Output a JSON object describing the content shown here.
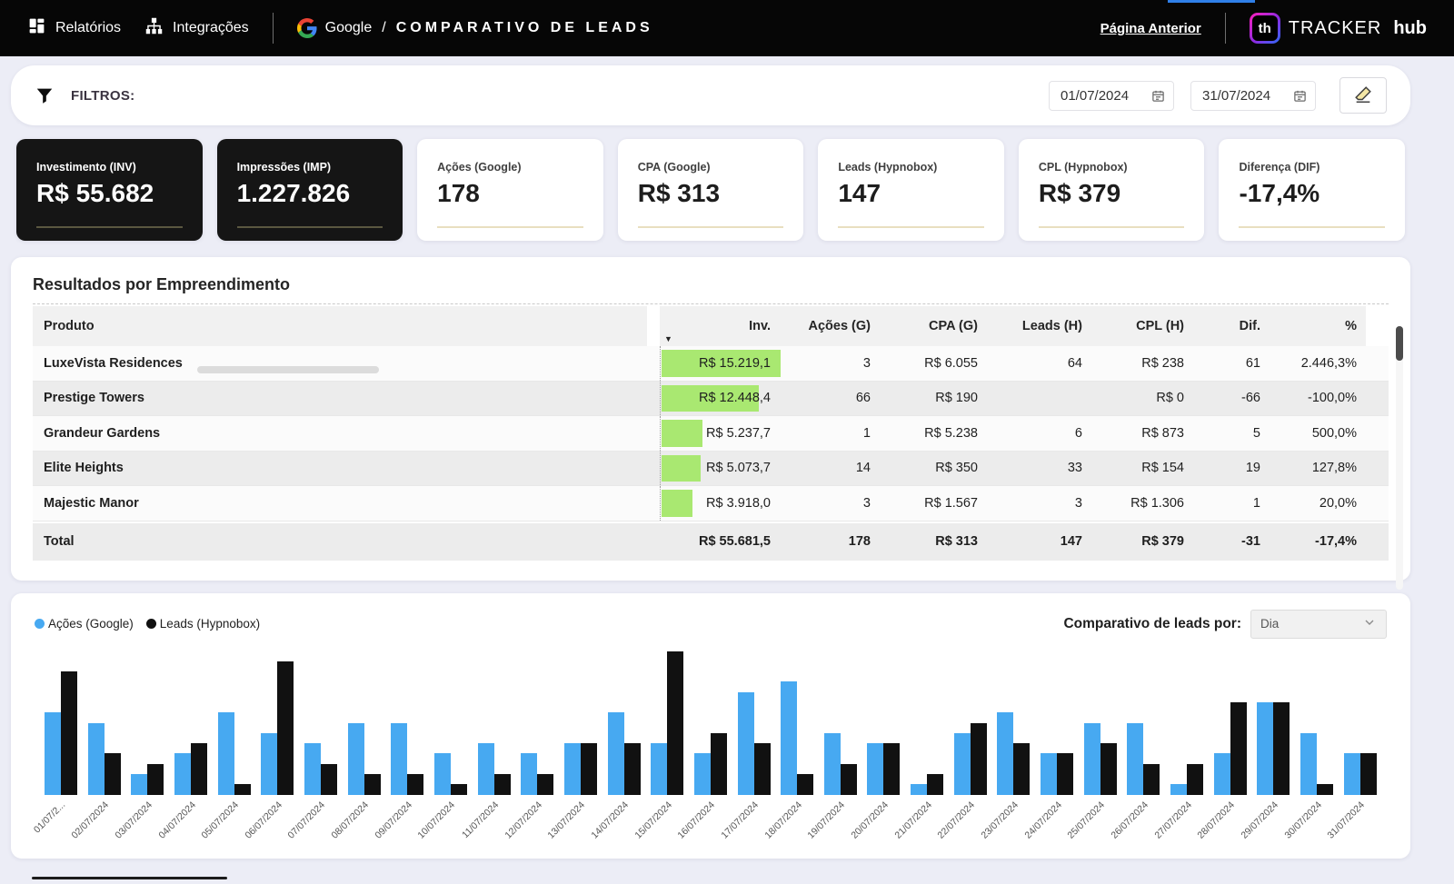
{
  "topbar": {
    "nav": [
      {
        "label": "Relatórios"
      },
      {
        "label": "Integrações"
      }
    ],
    "breadcrumb": {
      "source": "Google",
      "separator": "/",
      "title": "COMPARATIVO DE LEADS"
    },
    "back_link": "Página Anterior",
    "brand": {
      "logo": "th",
      "name": "TRACKER",
      "suffix": "hub"
    }
  },
  "filters": {
    "label": "FILTROS:",
    "date_start": "01/07/2024",
    "date_end": "31/07/2024",
    "icons": {
      "filter": "funnel-icon",
      "calendar": "calendar-icon",
      "clear": "eraser-icon"
    }
  },
  "kpi": {
    "cards": [
      {
        "label": "Investimento (INV)",
        "value": "R$ 55.682",
        "theme": "dark"
      },
      {
        "label": "Impressões (IMP)",
        "value": "1.227.826",
        "theme": "dark"
      },
      {
        "label": "Ações (Google)",
        "value": "178",
        "theme": "light"
      },
      {
        "label": "CPA (Google)",
        "value": "R$ 313",
        "theme": "light"
      },
      {
        "label": "Leads (Hypnobox)",
        "value": "147",
        "theme": "light"
      },
      {
        "label": "CPL (Hypnobox)",
        "value": "R$ 379",
        "theme": "light"
      },
      {
        "label": "Diferença (DIF)",
        "value": "-17,4%",
        "theme": "light"
      }
    ]
  },
  "table": {
    "title": "Resultados por Empreendimento",
    "columns": [
      "Produto",
      "Inv.",
      "Ações (G)",
      "CPA (G)",
      "Leads (H)",
      "CPL (H)",
      "Dif.",
      "%"
    ],
    "databar_color": "#a9e871",
    "rows": [
      {
        "produto": "LuxeVista Residences",
        "inv": "R$ 15.219,1",
        "bar_pct": 100,
        "acoes": "3",
        "cpa": "R$ 6.055",
        "leads": "64",
        "cpl": "R$ 238",
        "dif": "61",
        "pct": "2.446,3%"
      },
      {
        "produto": "Prestige Towers",
        "inv": "R$ 12.448,4",
        "bar_pct": 82,
        "acoes": "66",
        "cpa": "R$ 190",
        "leads": "",
        "cpl": "R$ 0",
        "dif": "-66",
        "pct": "-100,0%"
      },
      {
        "produto": "Grandeur Gardens",
        "inv": "R$ 5.237,7",
        "bar_pct": 34,
        "acoes": "1",
        "cpa": "R$ 5.238",
        "leads": "6",
        "cpl": "R$ 873",
        "dif": "5",
        "pct": "500,0%"
      },
      {
        "produto": "Elite Heights",
        "inv": "R$ 5.073,7",
        "bar_pct": 33,
        "acoes": "14",
        "cpa": "R$ 350",
        "leads": "33",
        "cpl": "R$ 154",
        "dif": "19",
        "pct": "127,8%"
      },
      {
        "produto": "Majestic Manor",
        "inv": "R$ 3.918,0",
        "bar_pct": 26,
        "acoes": "3",
        "cpa": "R$ 1.567",
        "leads": "3",
        "cpl": "R$ 1.306",
        "dif": "1",
        "pct": "20,0%"
      }
    ],
    "total": {
      "produto": "Total",
      "inv": "R$ 55.681,5",
      "acoes": "178",
      "cpa": "R$ 313",
      "leads": "147",
      "cpl": "R$ 379",
      "dif": "-31",
      "pct": "-17,4%"
    }
  },
  "chart": {
    "legend": [
      {
        "label": "Ações (Google)",
        "color": "#47a9f1"
      },
      {
        "label": "Leads (Hypnobox)",
        "color": "#111111"
      }
    ],
    "selector_label": "Comparativo de leads por:",
    "selector_value": "Dia"
  },
  "chart_data": {
    "type": "bar",
    "title": "Comparativo de leads por dia",
    "categories": [
      "01/07/2024",
      "02/07/2024",
      "03/07/2024",
      "04/07/2024",
      "05/07/2024",
      "06/07/2024",
      "07/07/2024",
      "08/07/2024",
      "09/07/2024",
      "10/07/2024",
      "11/07/2024",
      "12/07/2024",
      "13/07/2024",
      "14/07/2024",
      "15/07/2024",
      "16/07/2024",
      "17/07/2024",
      "18/07/2024",
      "19/07/2024",
      "20/07/2024",
      "21/07/2024",
      "22/07/2024",
      "23/07/2024",
      "24/07/2024",
      "25/07/2024",
      "26/07/2024",
      "27/07/2024",
      "28/07/2024",
      "29/07/2024",
      "30/07/2024",
      "31/07/2024"
    ],
    "x_first_label_display": "01/07/2...",
    "series": [
      {
        "name": "Ações (Google)",
        "color": "#47a9f1",
        "values": [
          8,
          7,
          2,
          4,
          8,
          6,
          5,
          7,
          7,
          4,
          5,
          4,
          5,
          8,
          5,
          4,
          10,
          11,
          6,
          5,
          1,
          6,
          8,
          4,
          7,
          7,
          1,
          4,
          9,
          6,
          4
        ]
      },
      {
        "name": "Leads (Hypnobox)",
        "color": "#111111",
        "values": [
          12,
          4,
          3,
          5,
          1,
          13,
          3,
          2,
          2,
          1,
          2,
          2,
          5,
          5,
          14,
          6,
          5,
          2,
          3,
          5,
          2,
          7,
          5,
          4,
          5,
          3,
          3,
          9,
          9,
          1,
          4
        ]
      }
    ],
    "ylim": [
      0,
      14
    ],
    "grid": false,
    "legend_position": "top-left",
    "x_tick_rotation": -45
  }
}
